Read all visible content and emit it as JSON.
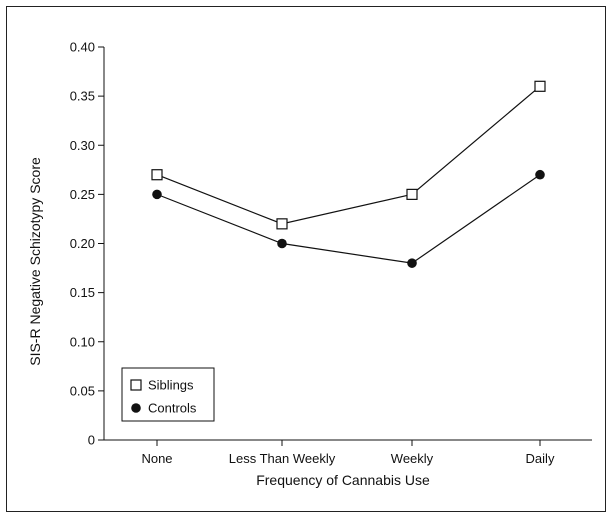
{
  "chart_data": {
    "type": "line",
    "title": "",
    "xlabel": "Frequency of Cannabis Use",
    "ylabel": "SIS-R Negative Schizotypy Score",
    "categories": [
      "None",
      "Less Than Weekly",
      "Weekly",
      "Daily"
    ],
    "ylim": [
      0,
      0.4
    ],
    "yticks": [
      0,
      0.05,
      0.1,
      0.15,
      0.2,
      0.25,
      0.3,
      0.35,
      0.4
    ],
    "ytick_labels": [
      "0",
      "0.05",
      "0.10",
      "0.15",
      "0.20",
      "0.25",
      "0.30",
      "0.35",
      "0.40"
    ],
    "grid": false,
    "legend_position": "bottom-left",
    "series": [
      {
        "name": "Siblings",
        "marker": "open-square",
        "color": "#111111",
        "values": [
          0.27,
          0.22,
          0.25,
          0.36
        ]
      },
      {
        "name": "Controls",
        "marker": "filled-circle",
        "color": "#111111",
        "values": [
          0.25,
          0.2,
          0.18,
          0.27
        ]
      }
    ]
  }
}
